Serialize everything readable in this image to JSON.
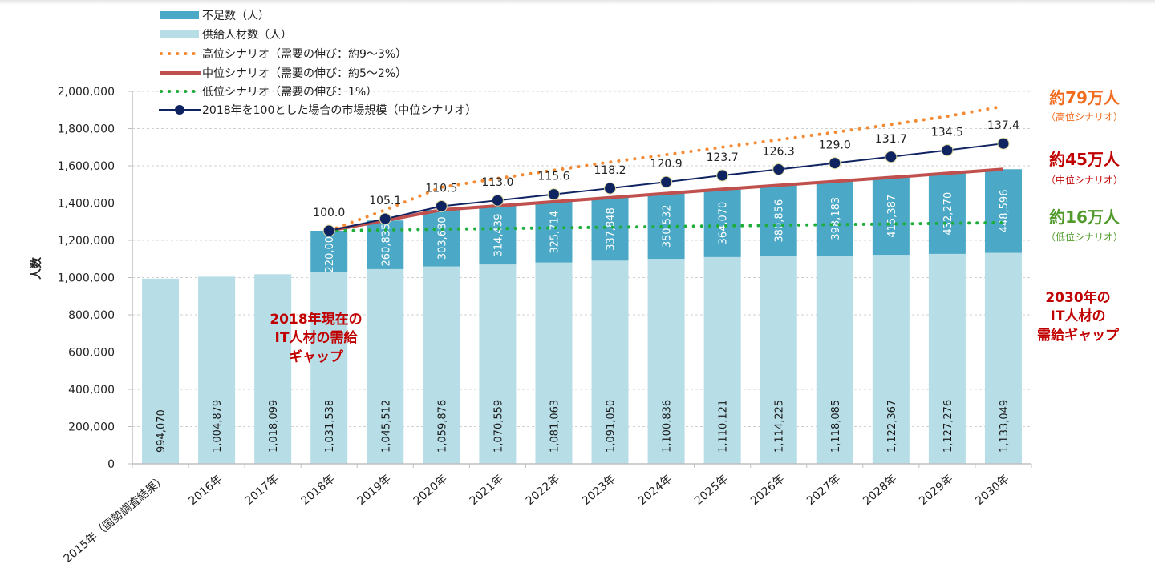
{
  "chart_data": {
    "type": "bar",
    "stacked": true,
    "ylabel": "人数",
    "ylim": [
      0,
      2000000
    ],
    "yticks": [
      "0",
      "200,000",
      "400,000",
      "600,000",
      "800,000",
      "1,000,000",
      "1,200,000",
      "1,400,000",
      "1,600,000",
      "1,800,000",
      "2,000,000"
    ],
    "ytick_values": [
      0,
      200000,
      400000,
      600000,
      800000,
      1000000,
      1200000,
      1400000,
      1600000,
      1800000,
      2000000
    ],
    "grid": true,
    "categories": [
      "2015年（国勢調査結果）",
      "2016年",
      "2017年",
      "2018年",
      "2019年",
      "2020年",
      "2021年",
      "2022年",
      "2023年",
      "2024年",
      "2025年",
      "2026年",
      "2027年",
      "2028年",
      "2029年",
      "2030年"
    ],
    "series": [
      {
        "name": "供給人材数（人）",
        "kind": "bar",
        "color": "#b7dde7",
        "values": [
          994070,
          1004879,
          1018099,
          1031538,
          1045512,
          1059876,
          1070559,
          1081063,
          1091050,
          1100836,
          1110121,
          1114225,
          1118085,
          1122367,
          1127276,
          1133049
        ],
        "labels": [
          "994,070",
          "1,004,879",
          "1,018,099",
          "1,031,538",
          "1,045,512",
          "1,059,876",
          "1,070,559",
          "1,081,063",
          "1,091,050",
          "1,100,836",
          "1,110,121",
          "1,114,225",
          "1,118,085",
          "1,122,367",
          "1,127,276",
          "1,133,049"
        ]
      },
      {
        "name": "不足数（人）",
        "kind": "bar",
        "color": "#4ba8c6",
        "values": [
          null,
          null,
          null,
          220000,
          260835,
          303680,
          314439,
          325714,
          337848,
          350532,
          364070,
          380856,
          398183,
          415387,
          432270,
          448596
        ],
        "labels": [
          null,
          null,
          null,
          "220,000",
          "260,835",
          "303,680",
          "314,439",
          "325,714",
          "337,848",
          "350,532",
          "364,070",
          "380,856",
          "398,183",
          "415,387",
          "432,270",
          "448,596"
        ]
      },
      {
        "name": "高位シナリオ（需要の伸び：約9～3%）",
        "kind": "line-dotted",
        "color": "#f58a34",
        "values": [
          null,
          null,
          null,
          1251538,
          1363000,
          1485000,
          1532000,
          1576000,
          1620000,
          1660000,
          1700000,
          1740000,
          1780000,
          1822000,
          1866000,
          1920000
        ]
      },
      {
        "name": "中位シナリオ（需要の伸び：約5～2%）",
        "kind": "line",
        "color": "#c0504d",
        "values": [
          null,
          null,
          null,
          1251538,
          1306347,
          1363556,
          1384998,
          1406777,
          1428898,
          1451368,
          1474191,
          1495081,
          1516268,
          1537754,
          1559546,
          1581645
        ]
      },
      {
        "name": "低位シナリオ（需要の伸び：1%）",
        "kind": "line-dotted",
        "color": "#1fae3c",
        "values": [
          null,
          null,
          null,
          1251538,
          1256000,
          1260000,
          1263500,
          1267000,
          1270500,
          1274000,
          1277500,
          1281000,
          1284500,
          1288000,
          1291500,
          1295000
        ]
      },
      {
        "name": "2018年を100とした場合の市場規模（中位シナリオ）",
        "kind": "line-marker",
        "color": "#0f2361",
        "index_values": [
          null,
          null,
          null,
          100.0,
          105.1,
          110.5,
          113.0,
          115.6,
          118.2,
          120.9,
          123.7,
          126.3,
          129.0,
          131.7,
          134.5,
          137.4
        ],
        "index_labels": [
          null,
          null,
          null,
          "100.0",
          "105.1",
          "110.5",
          "113.0",
          "115.6",
          "118.2",
          "120.9",
          "123.7",
          "126.3",
          "129.0",
          "131.7",
          "134.5",
          "137.4"
        ]
      }
    ],
    "legend_position": "top-left",
    "annotations": {
      "high": {
        "big": "約79万人",
        "small": "（高位シナリオ）",
        "color": "#f26b1d"
      },
      "mid": {
        "big": "約45万人",
        "small": "（中位シナリオ）",
        "color": "#c00000"
      },
      "low": {
        "big": "約16万人",
        "small": "（低位シナリオ）",
        "color": "#4f9a2a"
      },
      "gap2018": [
        "2018年現在の",
        "IT人材の需給",
        "ギャップ"
      ],
      "gap2030": [
        "2030年の",
        "IT人材の",
        "需給ギャップ"
      ]
    }
  }
}
